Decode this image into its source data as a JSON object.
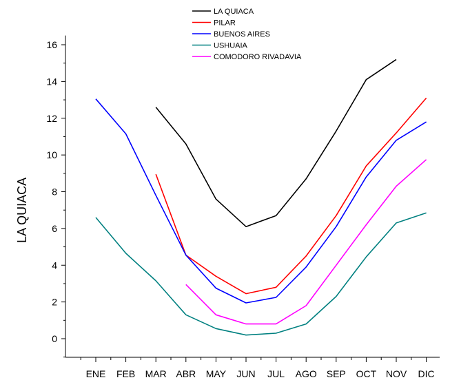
{
  "chart_data": {
    "type": "line",
    "title": "",
    "xlabel": "",
    "ylabel": "LA QUIACA",
    "categories": [
      "ENE",
      "FEB",
      "MAR",
      "ABR",
      "MAY",
      "JUN",
      "JUL",
      "AGO",
      "SEP",
      "OCT",
      "NOV",
      "DIC"
    ],
    "ylim": [
      -1,
      16.5
    ],
    "yticks": [
      0,
      2,
      4,
      6,
      8,
      10,
      12,
      14,
      16
    ],
    "grid": false,
    "legend_position": "top-center",
    "series": [
      {
        "name": "LA QUIACA",
        "color": "#000000",
        "values": [
          null,
          null,
          12.6,
          10.6,
          7.6,
          6.1,
          6.7,
          8.7,
          11.3,
          14.1,
          15.2,
          null
        ]
      },
      {
        "name": "PILAR",
        "color": "#ff0000",
        "values": [
          null,
          null,
          8.95,
          4.55,
          3.4,
          2.45,
          2.8,
          4.5,
          6.7,
          9.4,
          11.2,
          13.1
        ]
      },
      {
        "name": "BUENOS AIRES",
        "color": "#0000ff",
        "values": [
          13.05,
          11.15,
          7.8,
          4.55,
          2.75,
          1.95,
          2.25,
          3.9,
          6.1,
          8.8,
          10.8,
          11.8
        ]
      },
      {
        "name": "USHUAIA",
        "color": "#008080",
        "values": [
          6.6,
          4.65,
          3.15,
          1.3,
          0.55,
          0.2,
          0.3,
          0.8,
          2.3,
          4.45,
          6.3,
          6.85
        ]
      },
      {
        "name": "COMODORO RIVADAVIA",
        "color": "#ff00ff",
        "values": [
          null,
          null,
          null,
          2.95,
          1.3,
          0.8,
          0.8,
          1.8,
          4.0,
          6.2,
          8.3,
          9.75
        ]
      }
    ]
  }
}
